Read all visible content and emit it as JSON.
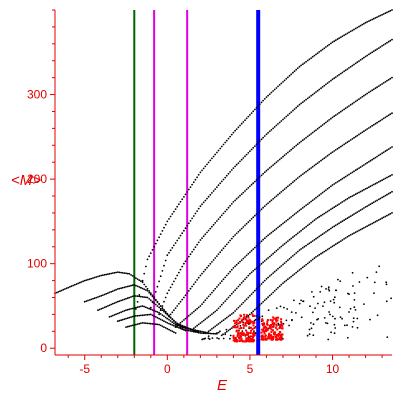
{
  "chart_data": {
    "type": "scatter",
    "title": "",
    "xlabel": "E",
    "ylabel": "<M>",
    "xlim": [
      -6.8,
      13.6
    ],
    "ylim": [
      -8,
      400
    ],
    "x_ticks": [
      -5,
      0,
      5,
      10
    ],
    "y_ticks": [
      0,
      100,
      200,
      300
    ],
    "grid": false,
    "colors": {
      "axis": "#e00000",
      "points": "#000000",
      "highlight_points": "#ff0000",
      "line_green": "#006400",
      "line_magenta": "#e000e0",
      "line_blue": "#0000ff"
    },
    "vertical_lines": [
      {
        "x": -2.0,
        "color": "#006400"
      },
      {
        "x": -0.8,
        "color": "#e000e0"
      },
      {
        "x": 1.2,
        "color": "#e000e0"
      },
      {
        "x": 5.5,
        "color": "#0000ff"
      }
    ],
    "series": [
      {
        "values": [
          [
            -2.0,
            38
          ],
          [
            -1.2,
            105
          ],
          [
            0,
            150
          ],
          [
            2,
            208
          ],
          [
            4,
            255
          ],
          [
            6,
            297
          ],
          [
            8,
            333
          ],
          [
            10,
            362
          ],
          [
            12,
            385
          ],
          [
            13.6,
            400
          ]
        ]
      },
      {
        "values": [
          [
            -1.0,
            48
          ],
          [
            0,
            110
          ],
          [
            2,
            168
          ],
          [
            4,
            213
          ],
          [
            6,
            253
          ],
          [
            8,
            288
          ],
          [
            10,
            318
          ],
          [
            12,
            345
          ],
          [
            13.6,
            365
          ]
        ]
      },
      {
        "values": [
          [
            -0.5,
            40
          ],
          [
            0,
            65
          ],
          [
            1,
            100
          ],
          [
            2,
            128
          ],
          [
            4,
            173
          ],
          [
            6,
            210
          ],
          [
            8,
            243
          ],
          [
            10,
            273
          ],
          [
            12,
            300
          ],
          [
            13.6,
            320
          ]
        ]
      },
      {
        "values": [
          [
            0,
            35
          ],
          [
            1,
            60
          ],
          [
            2,
            86
          ],
          [
            4,
            132
          ],
          [
            6,
            170
          ],
          [
            8,
            203
          ],
          [
            10,
            232
          ],
          [
            12,
            258
          ],
          [
            13.6,
            278
          ]
        ]
      },
      {
        "values": [
          [
            0.5,
            25
          ],
          [
            2,
            50
          ],
          [
            4,
            95
          ],
          [
            6,
            132
          ],
          [
            8,
            163
          ],
          [
            10,
            193
          ],
          [
            12,
            218
          ],
          [
            13.6,
            238
          ]
        ]
      },
      {
        "values": [
          [
            1.5,
            22
          ],
          [
            3,
            45
          ],
          [
            5,
            88
          ],
          [
            7,
            122
          ],
          [
            9,
            153
          ],
          [
            11,
            178
          ],
          [
            13.6,
            205
          ]
        ]
      },
      {
        "values": [
          [
            2.5,
            20
          ],
          [
            4,
            42
          ],
          [
            6,
            82
          ],
          [
            8,
            116
          ],
          [
            10,
            143
          ],
          [
            12,
            167
          ],
          [
            13.6,
            185
          ]
        ]
      },
      {
        "values": [
          [
            3.5,
            18
          ],
          [
            5,
            40
          ],
          [
            7,
            77
          ],
          [
            9,
            108
          ],
          [
            11,
            133
          ],
          [
            13.6,
            160
          ]
        ]
      },
      {
        "values": [
          [
            -6.8,
            65
          ],
          [
            -5,
            80
          ],
          [
            -4,
            86
          ],
          [
            -3,
            90
          ],
          [
            -2.3,
            88
          ],
          [
            -1.5,
            78
          ],
          [
            -0.8,
            60
          ],
          [
            0,
            40
          ],
          [
            1,
            22
          ],
          [
            2,
            18
          ]
        ]
      },
      {
        "values": [
          [
            -5.0,
            55
          ],
          [
            -4,
            62
          ],
          [
            -3,
            70
          ],
          [
            -2,
            75
          ],
          [
            -1.2,
            68
          ],
          [
            -0.5,
            52
          ],
          [
            0.5,
            30
          ],
          [
            2,
            18
          ],
          [
            3,
            17
          ]
        ]
      },
      {
        "values": [
          [
            -4.2,
            45
          ],
          [
            -3,
            55
          ],
          [
            -2,
            62
          ],
          [
            -1.2,
            60
          ],
          [
            -0.3,
            45
          ],
          [
            0.8,
            25
          ],
          [
            2.5,
            18
          ]
        ]
      },
      {
        "values": [
          [
            -3.5,
            37
          ],
          [
            -2.5,
            45
          ],
          [
            -1.5,
            50
          ],
          [
            -0.5,
            42
          ],
          [
            0.5,
            28
          ],
          [
            1.8,
            20
          ]
        ]
      },
      {
        "values": [
          [
            -3.0,
            32
          ],
          [
            -2,
            38
          ],
          [
            -1,
            40
          ],
          [
            0,
            30
          ],
          [
            1.2,
            20
          ]
        ]
      },
      {
        "values": [
          [
            -2.5,
            25
          ],
          [
            -1.5,
            30
          ],
          [
            -0.5,
            28
          ],
          [
            0.5,
            18
          ]
        ]
      }
    ],
    "highlight_clusters": [
      {
        "x": [
          4.0,
          5.3
        ],
        "y": [
          8,
          40
        ]
      },
      {
        "x": [
          5.7,
          7.0
        ],
        "y": [
          10,
          38
        ]
      }
    ],
    "scatter_fill": {
      "x": [
        2.0,
        13.6
      ],
      "y": [
        10,
        110
      ]
    }
  }
}
